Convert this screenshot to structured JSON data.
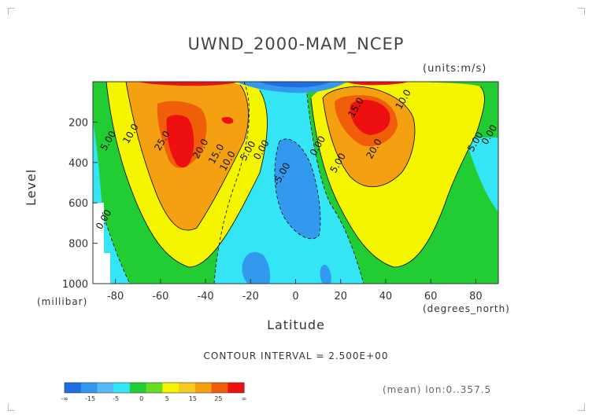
{
  "chart_data": {
    "type": "heatmap",
    "title": "UWND_2000-MAM_NCEP",
    "units_label": "(units:m/s)",
    "xlabel": "Latitude",
    "x_units": "(degrees_north)",
    "ylabel": "Level",
    "y_units": "(millibar)",
    "xlim": [
      -90,
      90
    ],
    "ylim": [
      1000,
      0
    ],
    "x_ticks": [
      "-80",
      "-60",
      "-40",
      "-20",
      "0",
      "20",
      "40",
      "60",
      "80"
    ],
    "y_ticks": [
      "200",
      "400",
      "600",
      "800",
      "1000"
    ],
    "contour_interval_text": "CONTOUR INTERVAL = 2.500E+00",
    "contour_labels": [
      {
        "text": "25.0",
        "x": -58,
        "y": 300
      },
      {
        "text": "20.0",
        "x": -41,
        "y": 340
      },
      {
        "text": "15.0",
        "x": -34,
        "y": 365
      },
      {
        "text": "10.0",
        "x": -29,
        "y": 400
      },
      {
        "text": "5.00",
        "x": -20,
        "y": 350
      },
      {
        "text": "0.00",
        "x": -14,
        "y": 345
      },
      {
        "text": "10.0",
        "x": -72,
        "y": 265
      },
      {
        "text": "5.00",
        "x": -82,
        "y": 300
      },
      {
        "text": "0.00",
        "x": -84,
        "y": 690
      },
      {
        "text": "-5.00",
        "x": -5,
        "y": 465
      },
      {
        "text": "0.00",
        "x": 11,
        "y": 325
      },
      {
        "text": "5.00",
        "x": 20,
        "y": 410
      },
      {
        "text": "15.0",
        "x": 28,
        "y": 135
      },
      {
        "text": "10.0",
        "x": 49,
        "y": 95
      },
      {
        "text": "20.0",
        "x": 36,
        "y": 340
      },
      {
        "text": "5.00",
        "x": 81,
        "y": 305
      },
      {
        "text": "0.00",
        "x": 92,
        "y": 270
      }
    ],
    "colorbar": {
      "colors": [
        "#1f6fe0",
        "#3399ee",
        "#5ab8f5",
        "#33e5f5",
        "#22cc33",
        "#66dd22",
        "#f5f500",
        "#f5cc22",
        "#f5a010",
        "#f05e0a",
        "#ee1010"
      ],
      "labels": [
        "-∞",
        "-15",
        "-5",
        "0",
        "5",
        "15",
        "25",
        "∞"
      ]
    },
    "mean_text": "(mean) lon:0..357.5",
    "grid": false
  }
}
